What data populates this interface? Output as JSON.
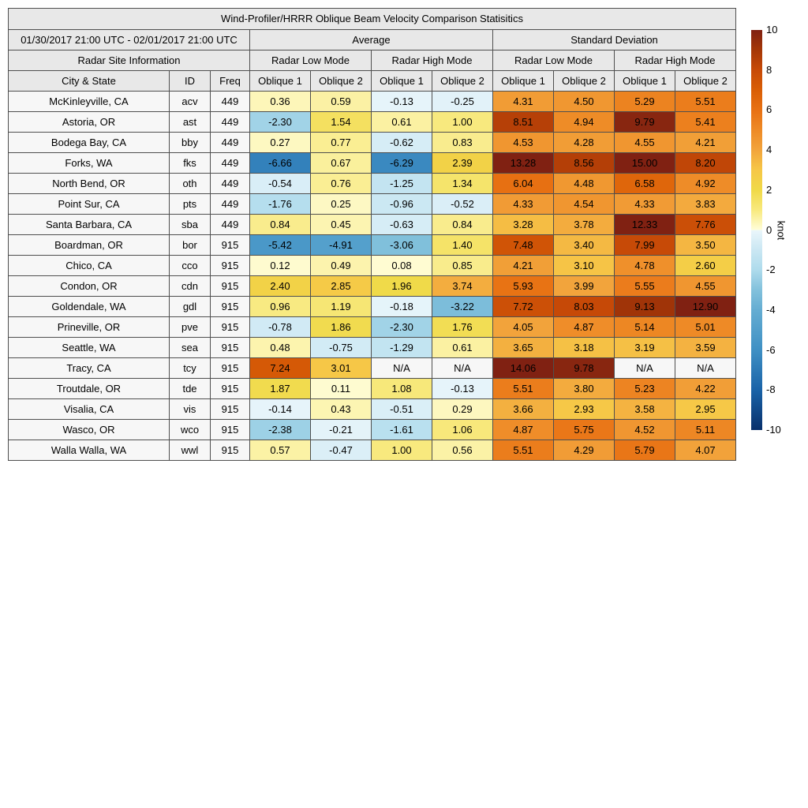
{
  "chart_data": {
    "type": "heatmap_table",
    "title": "Wind-Profiler/HRRR Oblique Beam Velocity Comparison Statisitics",
    "period": "01/30/2017 21:00 UTC - 02/01/2017 21:00 UTC",
    "section_headers": {
      "site_info": "Radar Site Information",
      "average": "Average",
      "std_dev": "Standard Deviation"
    },
    "mode_headers": [
      "Radar Low Mode",
      "Radar High Mode",
      "Radar Low Mode",
      "Radar High Mode"
    ],
    "column_headers": {
      "city": "City & State",
      "id": "ID",
      "freq": "Freq",
      "oblique1": "Oblique 1",
      "oblique2": "Oblique 2"
    },
    "value_columns": [
      "avg_low_oblique1",
      "avg_low_oblique2",
      "avg_high_oblique1",
      "avg_high_oblique2",
      "sd_low_oblique1",
      "sd_low_oblique2",
      "sd_high_oblique1",
      "sd_high_oblique2"
    ],
    "na_text": "N/A",
    "rows": [
      {
        "city": "McKinleyville, CA",
        "id": "acv",
        "freq": "449",
        "values": [
          "0.36",
          "0.59",
          "-0.13",
          "-0.25",
          "4.31",
          "4.50",
          "5.29",
          "5.51"
        ]
      },
      {
        "city": "Astoria, OR",
        "id": "ast",
        "freq": "449",
        "values": [
          "-2.30",
          "1.54",
          "0.61",
          "1.00",
          "8.51",
          "4.94",
          "9.79",
          "5.41"
        ]
      },
      {
        "city": "Bodega Bay, CA",
        "id": "bby",
        "freq": "449",
        "values": [
          "0.27",
          "0.77",
          "-0.62",
          "0.83",
          "4.53",
          "4.28",
          "4.55",
          "4.21"
        ]
      },
      {
        "city": "Forks, WA",
        "id": "fks",
        "freq": "449",
        "values": [
          "-6.66",
          "0.67",
          "-6.29",
          "2.39",
          "13.28",
          "8.56",
          "15.00",
          "8.20"
        ]
      },
      {
        "city": "North Bend, OR",
        "id": "oth",
        "freq": "449",
        "values": [
          "-0.54",
          "0.76",
          "-1.25",
          "1.34",
          "6.04",
          "4.48",
          "6.58",
          "4.92"
        ]
      },
      {
        "city": "Point Sur, CA",
        "id": "pts",
        "freq": "449",
        "values": [
          "-1.76",
          "0.25",
          "-0.96",
          "-0.52",
          "4.33",
          "4.54",
          "4.33",
          "3.83"
        ]
      },
      {
        "city": "Santa Barbara, CA",
        "id": "sba",
        "freq": "449",
        "values": [
          "0.84",
          "0.45",
          "-0.63",
          "0.84",
          "3.28",
          "3.78",
          "12.33",
          "7.76"
        ]
      },
      {
        "city": "Boardman, OR",
        "id": "bor",
        "freq": "915",
        "values": [
          "-5.42",
          "-4.91",
          "-3.06",
          "1.40",
          "7.48",
          "3.40",
          "7.99",
          "3.50"
        ]
      },
      {
        "city": "Chico, CA",
        "id": "cco",
        "freq": "915",
        "values": [
          "0.12",
          "0.49",
          "0.08",
          "0.85",
          "4.21",
          "3.10",
          "4.78",
          "2.60"
        ]
      },
      {
        "city": "Condon, OR",
        "id": "cdn",
        "freq": "915",
        "values": [
          "2.40",
          "2.85",
          "1.96",
          "3.74",
          "5.93",
          "3.99",
          "5.55",
          "4.55"
        ]
      },
      {
        "city": "Goldendale, WA",
        "id": "gdl",
        "freq": "915",
        "values": [
          "0.96",
          "1.19",
          "-0.18",
          "-3.22",
          "7.72",
          "8.03",
          "9.13",
          "12.90"
        ]
      },
      {
        "city": "Prineville, OR",
        "id": "pve",
        "freq": "915",
        "values": [
          "-0.78",
          "1.86",
          "-2.30",
          "1.76",
          "4.05",
          "4.87",
          "5.14",
          "5.01"
        ]
      },
      {
        "city": "Seattle, WA",
        "id": "sea",
        "freq": "915",
        "values": [
          "0.48",
          "-0.75",
          "-1.29",
          "0.61",
          "3.65",
          "3.18",
          "3.19",
          "3.59"
        ]
      },
      {
        "city": "Tracy, CA",
        "id": "tcy",
        "freq": "915",
        "values": [
          "7.24",
          "3.01",
          "N/A",
          "N/A",
          "14.06",
          "9.78",
          "N/A",
          "N/A"
        ]
      },
      {
        "city": "Troutdale, OR",
        "id": "tde",
        "freq": "915",
        "values": [
          "1.87",
          "0.11",
          "1.08",
          "-0.13",
          "5.51",
          "3.80",
          "5.23",
          "4.22"
        ]
      },
      {
        "city": "Visalia, CA",
        "id": "vis",
        "freq": "915",
        "values": [
          "-0.14",
          "0.43",
          "-0.51",
          "0.29",
          "3.66",
          "2.93",
          "3.58",
          "2.95"
        ]
      },
      {
        "city": "Wasco, OR",
        "id": "wco",
        "freq": "915",
        "values": [
          "-2.38",
          "-0.21",
          "-1.61",
          "1.06",
          "4.87",
          "5.75",
          "4.52",
          "5.11"
        ]
      },
      {
        "city": "Walla Walla, WA",
        "id": "wwl",
        "freq": "915",
        "values": [
          "0.57",
          "-0.47",
          "1.00",
          "0.56",
          "5.51",
          "4.29",
          "5.79",
          "4.07"
        ]
      }
    ],
    "colorbar": {
      "label": "knot",
      "min": -10,
      "max": 10,
      "ticks": [
        10,
        8,
        6,
        4,
        2,
        0,
        -2,
        -4,
        -6,
        -8,
        -10
      ],
      "gradient_stops": [
        [
          10,
          "#802112"
        ],
        [
          9,
          "#a53707"
        ],
        [
          8,
          "#c74a07"
        ],
        [
          7,
          "#d95e06"
        ],
        [
          6,
          "#e87113"
        ],
        [
          5,
          "#ee8a26"
        ],
        [
          4,
          "#f2a43c"
        ],
        [
          3,
          "#f6c747"
        ],
        [
          2,
          "#f0d947"
        ],
        [
          1,
          "#f8e97e"
        ],
        [
          0.02,
          "#fffdd8"
        ],
        [
          -0.02,
          "#eaf6fb"
        ],
        [
          -1,
          "#cae7f3"
        ],
        [
          -2,
          "#aedbec"
        ],
        [
          -3,
          "#82c1dc"
        ],
        [
          -4,
          "#65add2"
        ],
        [
          -6,
          "#3f90c4"
        ],
        [
          -8,
          "#1a63a8"
        ],
        [
          -10,
          "#08306b"
        ]
      ]
    },
    "colors": {
      "header_bg": "#e8e8e8",
      "site_cell_bg": "#f7f7f7",
      "na_cell_bg": "#f7f7f7",
      "border": "#4f4f4f",
      "max_clip": "#802112",
      "min_clip": "#08306b"
    }
  }
}
